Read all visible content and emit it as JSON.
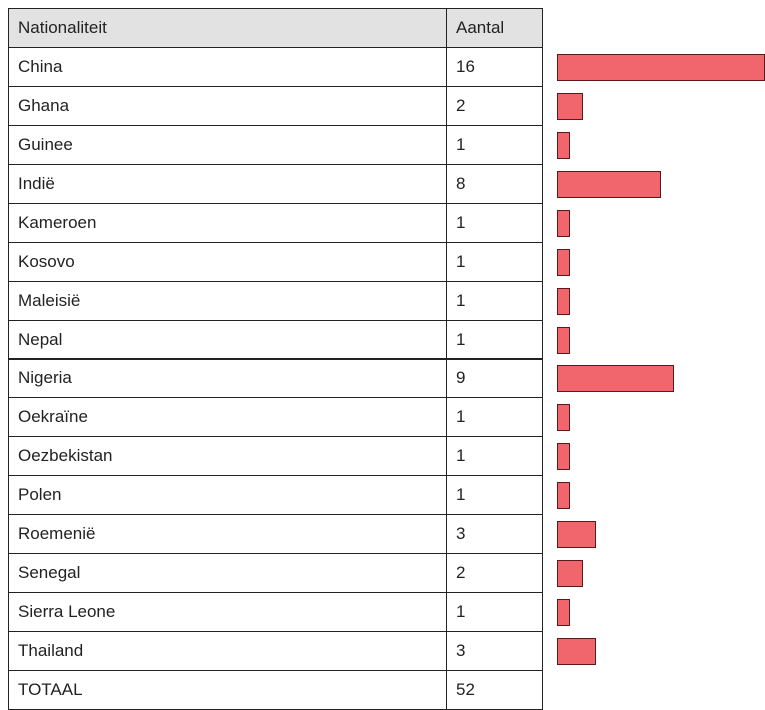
{
  "table": {
    "header": [
      "Nationaliteit",
      "Aantal"
    ],
    "rows": [
      [
        "China",
        16
      ],
      [
        "Ghana",
        2
      ],
      [
        "Guinee",
        1
      ],
      [
        "Indië",
        8
      ],
      [
        "Kameroen",
        1
      ],
      [
        "Kosovo",
        1
      ],
      [
        "Maleisië",
        1
      ],
      [
        "Nepal",
        1
      ],
      [
        "Nigeria",
        9
      ],
      [
        "Oekraïne",
        1
      ],
      [
        "Oezbekistan",
        1
      ],
      [
        "Polen",
        1
      ],
      [
        "Roemenië",
        3
      ],
      [
        "Senegal",
        2
      ],
      [
        "Sierra Leone",
        1
      ],
      [
        "Thailand",
        3
      ]
    ],
    "total": [
      "TOTAAL",
      52
    ]
  }
}
